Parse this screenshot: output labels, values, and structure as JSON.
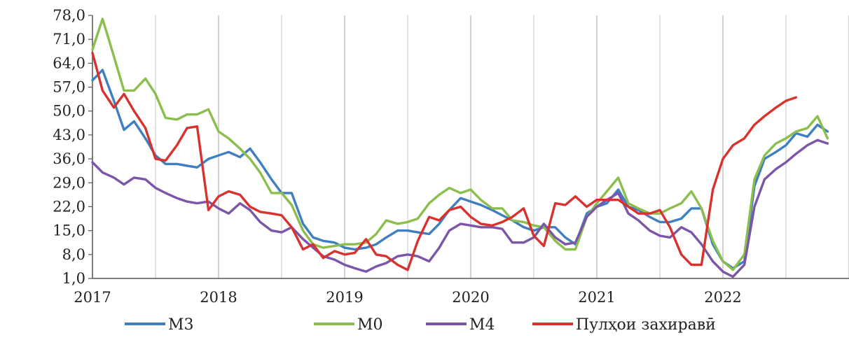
{
  "chart_data": {
    "type": "line",
    "title": "",
    "xlabel": "",
    "ylabel": "",
    "x_ticks": [
      "2017",
      "2018",
      "2019",
      "2020",
      "2021",
      "2022"
    ],
    "y_ticks": [
      "1,0",
      "8,0",
      "15,0",
      "22,0",
      "29,0",
      "36,0",
      "43,0",
      "50,0",
      "57,0",
      "64,0",
      "71,0",
      "78,0"
    ],
    "ylim": [
      1,
      78
    ],
    "xlim": [
      2017.0,
      2023.0
    ],
    "grid": "vertical",
    "legend_position": "bottom",
    "series": [
      {
        "name": "M3",
        "color": "#3f7fc1",
        "points": [
          [
            2017.0,
            59
          ],
          [
            2017.08,
            62
          ],
          [
            2017.17,
            53
          ],
          [
            2017.25,
            44.5
          ],
          [
            2017.33,
            47
          ],
          [
            2017.42,
            42
          ],
          [
            2017.5,
            37
          ],
          [
            2017.58,
            34.5
          ],
          [
            2017.67,
            34.5
          ],
          [
            2017.75,
            34
          ],
          [
            2017.83,
            33.5
          ],
          [
            2017.92,
            36
          ],
          [
            2018.0,
            37
          ],
          [
            2018.08,
            38
          ],
          [
            2018.17,
            36.5
          ],
          [
            2018.25,
            39
          ],
          [
            2018.33,
            35
          ],
          [
            2018.42,
            30
          ],
          [
            2018.5,
            26
          ],
          [
            2018.58,
            26
          ],
          [
            2018.67,
            17
          ],
          [
            2018.75,
            13
          ],
          [
            2018.83,
            12
          ],
          [
            2018.92,
            11.5
          ],
          [
            2019.0,
            10
          ],
          [
            2019.08,
            9.5
          ],
          [
            2019.17,
            10
          ],
          [
            2019.25,
            11
          ],
          [
            2019.33,
            13
          ],
          [
            2019.42,
            15
          ],
          [
            2019.5,
            15
          ],
          [
            2019.58,
            14.5
          ],
          [
            2019.67,
            14
          ],
          [
            2019.75,
            17
          ],
          [
            2019.83,
            21
          ],
          [
            2019.92,
            24.5
          ],
          [
            2020.0,
            23.5
          ],
          [
            2020.08,
            22.5
          ],
          [
            2020.17,
            21
          ],
          [
            2020.25,
            19.5
          ],
          [
            2020.33,
            18
          ],
          [
            2020.42,
            16
          ],
          [
            2020.5,
            15
          ],
          [
            2020.58,
            16
          ],
          [
            2020.67,
            16
          ],
          [
            2020.75,
            13
          ],
          [
            2020.83,
            11
          ],
          [
            2020.92,
            20
          ],
          [
            2021.0,
            22
          ],
          [
            2021.08,
            23
          ],
          [
            2021.17,
            27
          ],
          [
            2021.25,
            22
          ],
          [
            2021.33,
            21
          ],
          [
            2021.42,
            19
          ],
          [
            2021.5,
            17.5
          ],
          [
            2021.58,
            17.5
          ],
          [
            2021.67,
            18.5
          ],
          [
            2021.75,
            21.5
          ],
          [
            2021.83,
            21.5
          ],
          [
            2021.92,
            11
          ],
          [
            2022.0,
            6
          ],
          [
            2022.08,
            4
          ],
          [
            2022.17,
            6
          ],
          [
            2022.25,
            28
          ],
          [
            2022.33,
            36
          ],
          [
            2022.42,
            38
          ],
          [
            2022.5,
            40
          ],
          [
            2022.58,
            43.5
          ],
          [
            2022.67,
            42.5
          ],
          [
            2022.75,
            46
          ],
          [
            2022.83,
            44
          ]
        ]
      },
      {
        "name": "M0",
        "color": "#8bbe4c",
        "points": [
          [
            2017.0,
            68
          ],
          [
            2017.08,
            77
          ],
          [
            2017.17,
            66
          ],
          [
            2017.25,
            56
          ],
          [
            2017.33,
            56
          ],
          [
            2017.42,
            59.5
          ],
          [
            2017.5,
            55
          ],
          [
            2017.58,
            48
          ],
          [
            2017.67,
            47.5
          ],
          [
            2017.75,
            49
          ],
          [
            2017.83,
            49
          ],
          [
            2017.92,
            50.5
          ],
          [
            2018.0,
            44
          ],
          [
            2018.08,
            42
          ],
          [
            2018.17,
            39
          ],
          [
            2018.25,
            36
          ],
          [
            2018.33,
            32
          ],
          [
            2018.42,
            26
          ],
          [
            2018.5,
            26
          ],
          [
            2018.58,
            22.5
          ],
          [
            2018.67,
            15
          ],
          [
            2018.75,
            11
          ],
          [
            2018.83,
            10
          ],
          [
            2018.92,
            10.5
          ],
          [
            2019.0,
            11
          ],
          [
            2019.08,
            11
          ],
          [
            2019.17,
            11.5
          ],
          [
            2019.25,
            14
          ],
          [
            2019.33,
            18
          ],
          [
            2019.42,
            17
          ],
          [
            2019.5,
            17.5
          ],
          [
            2019.58,
            18.5
          ],
          [
            2019.67,
            23
          ],
          [
            2019.75,
            25.5
          ],
          [
            2019.83,
            27.5
          ],
          [
            2019.92,
            26
          ],
          [
            2020.0,
            27
          ],
          [
            2020.08,
            24
          ],
          [
            2020.17,
            21.5
          ],
          [
            2020.25,
            21.5
          ],
          [
            2020.33,
            18
          ],
          [
            2020.42,
            17.5
          ],
          [
            2020.5,
            16.5
          ],
          [
            2020.58,
            16
          ],
          [
            2020.67,
            12
          ],
          [
            2020.75,
            9.5
          ],
          [
            2020.83,
            9.5
          ],
          [
            2020.92,
            19
          ],
          [
            2021.0,
            23
          ],
          [
            2021.08,
            26.5
          ],
          [
            2021.17,
            30.5
          ],
          [
            2021.25,
            23
          ],
          [
            2021.33,
            21.5
          ],
          [
            2021.42,
            20
          ],
          [
            2021.5,
            20
          ],
          [
            2021.58,
            21.5
          ],
          [
            2021.67,
            23
          ],
          [
            2021.75,
            26.5
          ],
          [
            2021.83,
            21.5
          ],
          [
            2021.92,
            12
          ],
          [
            2022.0,
            6
          ],
          [
            2022.08,
            3.5
          ],
          [
            2022.17,
            8
          ],
          [
            2022.25,
            30
          ],
          [
            2022.33,
            37
          ],
          [
            2022.42,
            40.5
          ],
          [
            2022.5,
            42
          ],
          [
            2022.58,
            44
          ],
          [
            2022.67,
            45
          ],
          [
            2022.75,
            48.5
          ],
          [
            2022.83,
            42
          ]
        ]
      },
      {
        "name": "M4",
        "color": "#7b55a8",
        "points": [
          [
            2017.0,
            35
          ],
          [
            2017.08,
            32
          ],
          [
            2017.17,
            30.5
          ],
          [
            2017.25,
            28.5
          ],
          [
            2017.33,
            30.5
          ],
          [
            2017.42,
            30
          ],
          [
            2017.5,
            27.5
          ],
          [
            2017.58,
            26
          ],
          [
            2017.67,
            24.5
          ],
          [
            2017.75,
            23.5
          ],
          [
            2017.83,
            23
          ],
          [
            2017.92,
            23.5
          ],
          [
            2018.0,
            21.5
          ],
          [
            2018.08,
            20
          ],
          [
            2018.17,
            23
          ],
          [
            2018.25,
            21
          ],
          [
            2018.33,
            17.5
          ],
          [
            2018.42,
            15
          ],
          [
            2018.5,
            14.5
          ],
          [
            2018.58,
            16
          ],
          [
            2018.67,
            12.5
          ],
          [
            2018.75,
            10
          ],
          [
            2018.83,
            7.5
          ],
          [
            2018.92,
            6.5
          ],
          [
            2019.0,
            5
          ],
          [
            2019.08,
            4
          ],
          [
            2019.17,
            3
          ],
          [
            2019.25,
            4.5
          ],
          [
            2019.33,
            5.5
          ],
          [
            2019.42,
            7.5
          ],
          [
            2019.5,
            8
          ],
          [
            2019.58,
            7.5
          ],
          [
            2019.67,
            6
          ],
          [
            2019.75,
            10
          ],
          [
            2019.83,
            15
          ],
          [
            2019.92,
            17
          ],
          [
            2020.0,
            16.5
          ],
          [
            2020.08,
            16
          ],
          [
            2020.17,
            16
          ],
          [
            2020.25,
            15.5
          ],
          [
            2020.33,
            11.5
          ],
          [
            2020.42,
            11.5
          ],
          [
            2020.5,
            13
          ],
          [
            2020.58,
            17
          ],
          [
            2020.67,
            13
          ],
          [
            2020.75,
            11
          ],
          [
            2020.83,
            11.5
          ],
          [
            2020.92,
            19
          ],
          [
            2021.0,
            22
          ],
          [
            2021.08,
            24
          ],
          [
            2021.17,
            26
          ],
          [
            2021.25,
            20
          ],
          [
            2021.33,
            18
          ],
          [
            2021.42,
            15
          ],
          [
            2021.5,
            13.5
          ],
          [
            2021.58,
            13
          ],
          [
            2021.67,
            16
          ],
          [
            2021.75,
            14.5
          ],
          [
            2021.83,
            11
          ],
          [
            2021.92,
            6
          ],
          [
            2022.0,
            3
          ],
          [
            2022.08,
            1.5
          ],
          [
            2022.17,
            5
          ],
          [
            2022.25,
            22
          ],
          [
            2022.33,
            30
          ],
          [
            2022.42,
            33
          ],
          [
            2022.5,
            35
          ],
          [
            2022.58,
            37.5
          ],
          [
            2022.67,
            40
          ],
          [
            2022.75,
            41.5
          ],
          [
            2022.83,
            40.5
          ]
        ]
      },
      {
        "name": "Пулҳои захиравӣ",
        "color": "#d8322f",
        "points": [
          [
            2017.0,
            67
          ],
          [
            2017.08,
            56
          ],
          [
            2017.17,
            51
          ],
          [
            2017.25,
            55
          ],
          [
            2017.33,
            50
          ],
          [
            2017.42,
            45
          ],
          [
            2017.5,
            36
          ],
          [
            2017.58,
            35.5
          ],
          [
            2017.67,
            40
          ],
          [
            2017.75,
            45
          ],
          [
            2017.83,
            45.5
          ],
          [
            2017.92,
            21
          ],
          [
            2018.0,
            25
          ],
          [
            2018.08,
            26.5
          ],
          [
            2018.17,
            25.5
          ],
          [
            2018.25,
            22
          ],
          [
            2018.33,
            20.5
          ],
          [
            2018.42,
            20
          ],
          [
            2018.5,
            19.5
          ],
          [
            2018.58,
            16
          ],
          [
            2018.67,
            9.5
          ],
          [
            2018.75,
            11
          ],
          [
            2018.83,
            7
          ],
          [
            2018.92,
            9
          ],
          [
            2019.0,
            8
          ],
          [
            2019.08,
            8.5
          ],
          [
            2019.17,
            12.5
          ],
          [
            2019.25,
            8
          ],
          [
            2019.33,
            7.5
          ],
          [
            2019.42,
            5
          ],
          [
            2019.5,
            3.5
          ],
          [
            2019.58,
            12
          ],
          [
            2019.67,
            19
          ],
          [
            2019.75,
            18
          ],
          [
            2019.83,
            21
          ],
          [
            2019.92,
            22
          ],
          [
            2020.0,
            19
          ],
          [
            2020.08,
            17
          ],
          [
            2020.17,
            16.5
          ],
          [
            2020.25,
            17.5
          ],
          [
            2020.33,
            19
          ],
          [
            2020.42,
            21.5
          ],
          [
            2020.5,
            13.5
          ],
          [
            2020.58,
            10.5
          ],
          [
            2020.67,
            23
          ],
          [
            2020.75,
            22.5
          ],
          [
            2020.83,
            25
          ],
          [
            2020.92,
            22
          ],
          [
            2021.0,
            24
          ],
          [
            2021.08,
            24
          ],
          [
            2021.17,
            24
          ],
          [
            2021.25,
            22
          ],
          [
            2021.33,
            20
          ],
          [
            2021.42,
            20
          ],
          [
            2021.5,
            21
          ],
          [
            2021.58,
            16
          ],
          [
            2021.67,
            8
          ],
          [
            2021.75,
            5
          ],
          [
            2021.83,
            5
          ],
          [
            2021.92,
            27
          ],
          [
            2022.0,
            36
          ],
          [
            2022.08,
            40
          ],
          [
            2022.17,
            42
          ],
          [
            2022.25,
            46
          ],
          [
            2022.33,
            48.5
          ],
          [
            2022.42,
            51
          ],
          [
            2022.5,
            53
          ],
          [
            2022.58,
            54
          ]
        ]
      }
    ]
  }
}
